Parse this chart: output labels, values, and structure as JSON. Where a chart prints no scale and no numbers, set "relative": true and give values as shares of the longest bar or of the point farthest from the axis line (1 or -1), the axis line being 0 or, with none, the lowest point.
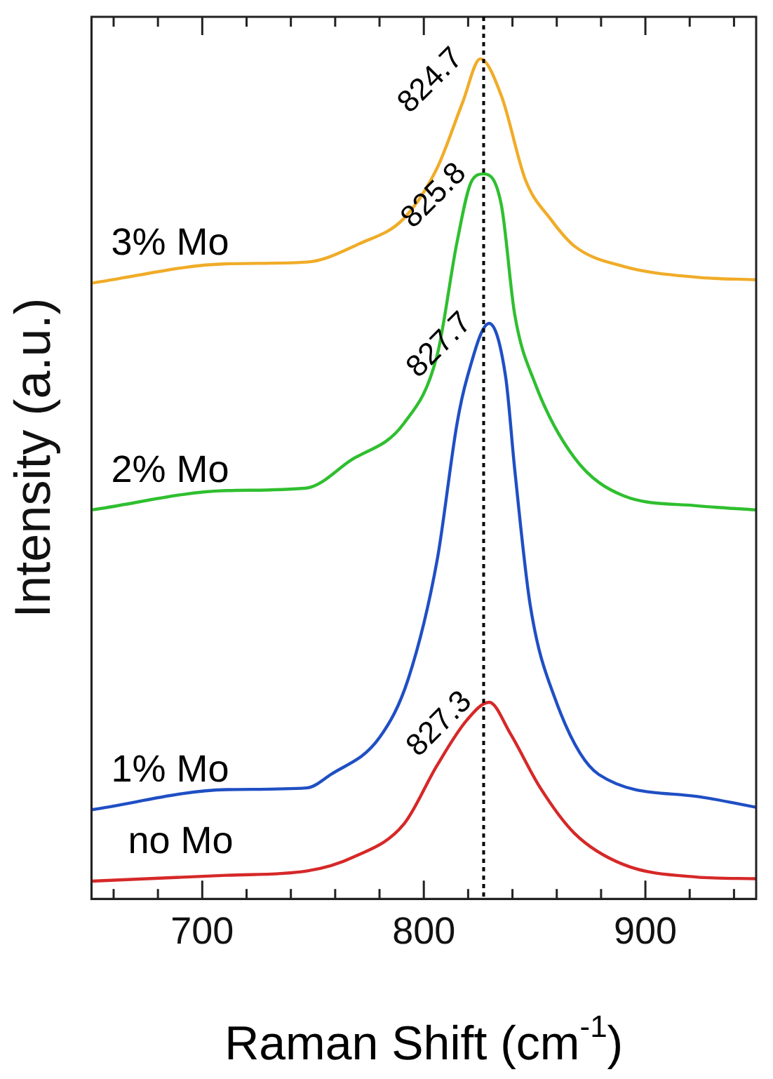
{
  "chart_data": {
    "type": "line",
    "relative": true,
    "xlabel": "Raman Shift (cm$^{-1}$)",
    "ylabel": "Intensity (a.u.)",
    "xlim": [
      650,
      950
    ],
    "xticks": [
      {
        "value": 660,
        "label": null
      },
      {
        "value": 680,
        "label": null
      },
      700,
      {
        "value": 720,
        "label": null
      },
      {
        "value": 740,
        "label": null
      },
      {
        "value": 760,
        "label": null
      },
      {
        "value": 780,
        "label": null
      },
      800,
      {
        "value": 820,
        "label": null
      },
      {
        "value": 840,
        "label": null
      },
      {
        "value": 860,
        "label": null
      },
      {
        "value": 880,
        "label": null
      },
      900,
      {
        "value": 920,
        "label": null
      },
      {
        "value": 940,
        "label": null
      }
    ],
    "grid": false,
    "legend": false,
    "marker": "none",
    "line_style": "solid",
    "series": [
      {
        "name": "no Mo",
        "color": "#d62828",
        "x": [
          650,
          711,
          747,
          768.5,
          791,
          806,
          819.5,
          829.5,
          839,
          852.6,
          868,
          890,
          923,
          950
        ],
        "values": [
          0.021,
          0.028,
          0.033,
          0.05,
          0.089,
          0.159,
          0.213,
          0.234,
          0.197,
          0.132,
          0.078,
          0.041,
          0.026,
          0.024
        ]
      },
      {
        "name": "1% Mo",
        "color": "#1f4fc4",
        "x": [
          650,
          711,
          747,
          758,
          780,
          793,
          806,
          815,
          819.5,
          829.5,
          837,
          841,
          848,
          859,
          879,
          923,
          950
        ],
        "values": [
          0.106,
          0.13,
          0.132,
          0.148,
          0.192,
          0.262,
          0.403,
          0.566,
          0.62,
          0.685,
          0.62,
          0.512,
          0.35,
          0.24,
          0.148,
          0.122,
          0.109
        ]
      },
      {
        "name": "2% Mo",
        "color": "#2fbf2f",
        "x": [
          650,
          711,
          747,
          767,
          791,
          806,
          815,
          821.5,
          827,
          835,
          841,
          850,
          868,
          890,
          923,
          950
        ],
        "values": [
          0.463,
          0.486,
          0.489,
          0.522,
          0.566,
          0.647,
          0.782,
          0.854,
          0.863,
          0.826,
          0.696,
          0.615,
          0.525,
          0.48,
          0.468,
          0.463
        ]
      },
      {
        "name": "3% Mo",
        "color": "#f0ac28",
        "x": [
          650,
          711,
          747,
          771,
          791,
          806,
          817.5,
          825.5,
          835,
          846,
          857,
          868,
          890,
          923,
          950
        ],
        "values": [
          0.733,
          0.756,
          0.758,
          0.78,
          0.81,
          0.87,
          0.948,
          1.0,
          0.956,
          0.855,
          0.81,
          0.777,
          0.753,
          0.74,
          0.737
        ]
      }
    ],
    "ref_lines": [
      {
        "axis": "x",
        "value": 827,
        "color": "#000000",
        "line_style": "dotted"
      }
    ],
    "annotations": [
      {
        "text": "827.3",
        "x": 829.5,
        "y": 0.234
      },
      {
        "text": "827.7",
        "x": 829.5,
        "y": 0.685
      },
      {
        "text": "825.8",
        "x": 827,
        "y": 0.863
      },
      {
        "text": "824.7",
        "x": 825.5,
        "y": 1.0
      }
    ]
  }
}
